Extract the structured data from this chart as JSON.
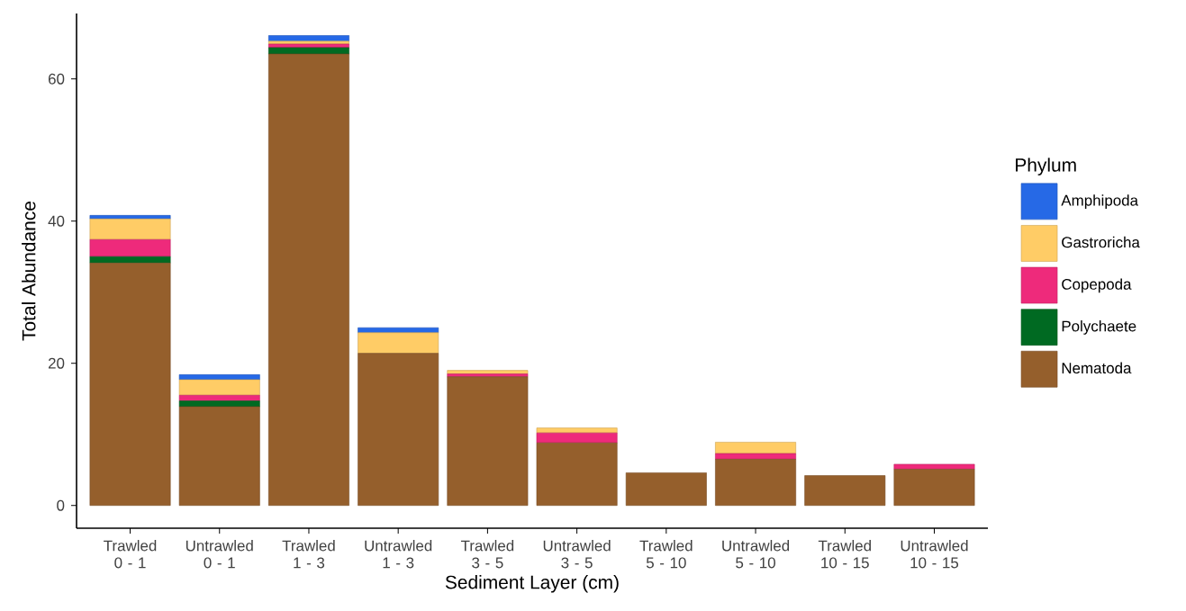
{
  "chart_data": {
    "type": "bar",
    "stacked": true,
    "xlabel": "Sediment Layer (cm)",
    "ylabel": "Total Abundance",
    "legend_title": "Phylum",
    "legend": "right",
    "categories": [
      "Trawled 0 - 1",
      "Untrawled 0 - 1",
      "Trawled 1 - 3",
      "Untrawled 1 - 3",
      "Trawled 3 - 5",
      "Untrawled 3 - 5",
      "Trawled 5 - 10",
      "Untrawled 5 - 10",
      "Trawled 10 - 15",
      "Untrawled 10 - 15"
    ],
    "series": [
      {
        "name": "Nematoda",
        "color": "#955f2c",
        "values": [
          34.1,
          13.9,
          63.5,
          21.4,
          18.1,
          8.8,
          4.6,
          6.5,
          4.2,
          5.1
        ]
      },
      {
        "name": "Polychaete",
        "color": "#006a22",
        "values": [
          0.9,
          0.8,
          0.9,
          null,
          null,
          null,
          null,
          null,
          null,
          null
        ]
      },
      {
        "name": "Copepoda",
        "color": "#ee2a7b",
        "values": [
          2.4,
          0.8,
          0.5,
          null,
          0.4,
          1.4,
          null,
          0.8,
          null,
          0.7
        ]
      },
      {
        "name": "Gastroricha",
        "color": "#ffcc66",
        "values": [
          2.9,
          2.2,
          0.4,
          2.9,
          0.5,
          0.7,
          null,
          1.6,
          null,
          null
        ]
      },
      {
        "name": "Amphipoda",
        "color": "#2669e6",
        "values": [
          0.5,
          0.7,
          0.8,
          0.7,
          null,
          null,
          null,
          null,
          null,
          null
        ]
      }
    ],
    "ylim": [
      -3.2,
      69.2
    ],
    "yticks": [
      0,
      20,
      40,
      60
    ],
    "grid": false
  }
}
